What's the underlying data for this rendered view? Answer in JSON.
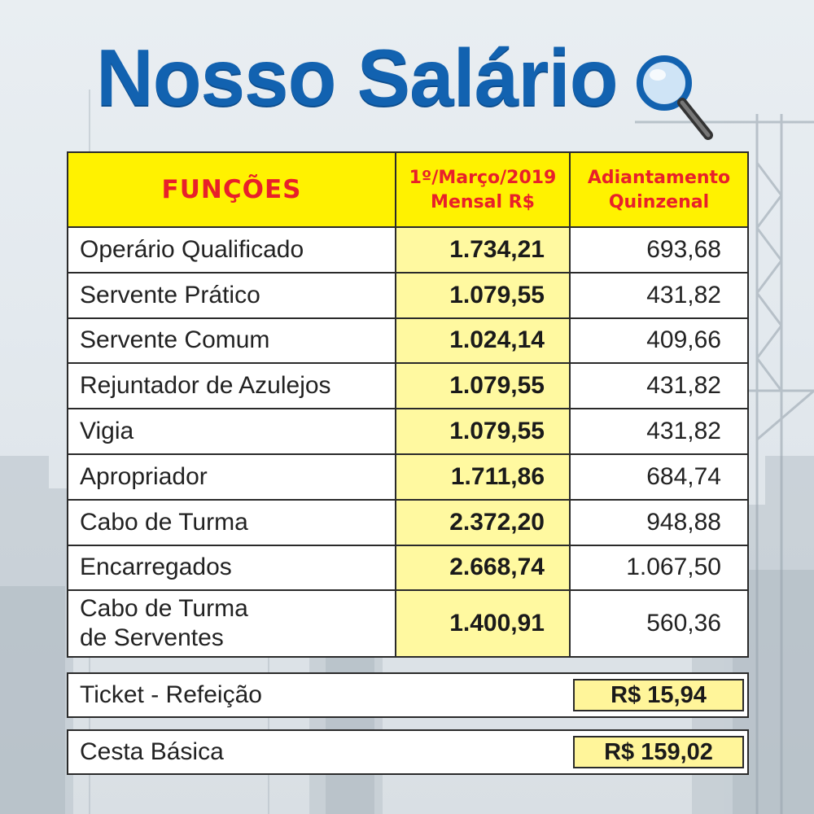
{
  "title": "Nosso Salário",
  "colors": {
    "title": "#1262b0",
    "header_bg": "#fff200",
    "header_text": "#e8202a",
    "value_bg": "#fff9a0"
  },
  "header": {
    "funcoes": "FUNÇÕES",
    "mensal_line1": "1º/Março/2019",
    "mensal_line2": "Mensal R$",
    "adiant_line1": "Adiantamento",
    "adiant_line2": "Quinzenal"
  },
  "rows": [
    {
      "funcao": "Operário Qualificado",
      "mensal": "1.734,21",
      "quinzenal": "693,68"
    },
    {
      "funcao": "Servente Prático",
      "mensal": "1.079,55",
      "quinzenal": "431,82"
    },
    {
      "funcao": "Servente Comum",
      "mensal": "1.024,14",
      "quinzenal": "409,66"
    },
    {
      "funcao": "Rejuntador de Azulejos",
      "mensal": "1.079,55",
      "quinzenal": "431,82"
    },
    {
      "funcao": "Vigia",
      "mensal": "1.079,55",
      "quinzenal": "431,82"
    },
    {
      "funcao": "Apropriador",
      "mensal": "1.711,86",
      "quinzenal": "684,74"
    },
    {
      "funcao": "Cabo de Turma",
      "mensal": "2.372,20",
      "quinzenal": "948,88"
    },
    {
      "funcao": "Encarregados",
      "mensal": "2.668,74",
      "quinzenal": "1.067,50"
    },
    {
      "funcao_line1": "Cabo de Turma",
      "funcao_line2": "de Serventes",
      "mensal": "1.400,91",
      "quinzenal": "560,36"
    }
  ],
  "ticket": {
    "label": "Ticket - Refeição",
    "value": "R$ 15,94"
  },
  "cesta": {
    "label": "Cesta Básica",
    "value": "R$ 159,02"
  }
}
